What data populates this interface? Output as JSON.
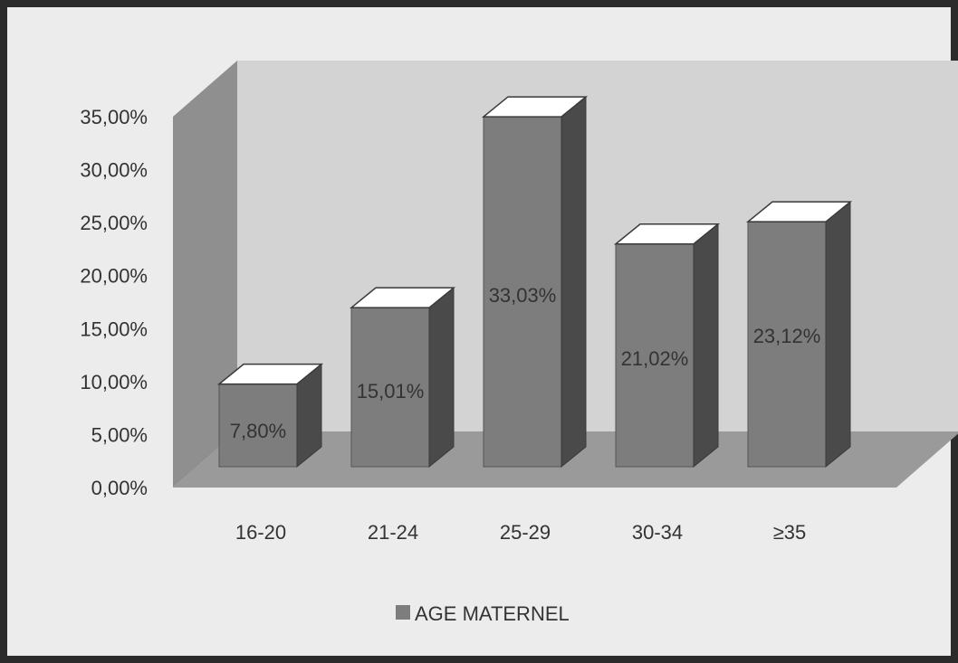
{
  "chart_data": {
    "type": "bar",
    "three_d": true,
    "categories": [
      "16-20",
      "21-24",
      "25-29",
      "30-34",
      "≥35"
    ],
    "series": [
      {
        "name": "AGE MATERNEL",
        "values": [
          7.8,
          15.01,
          33.03,
          21.02,
          23.12
        ],
        "labels": [
          "7,80%",
          "15,01%",
          "33,03%",
          "21,02%",
          "23,12%"
        ]
      }
    ],
    "yticks": [
      "0,00%",
      "5,00%",
      "10,00%",
      "15,00%",
      "20,00%",
      "25,00%",
      "30,00%",
      "35,00%"
    ],
    "ylim": [
      0,
      35
    ],
    "grid": false,
    "legend": "bottom",
    "colors": {
      "bar_front": "#7d7d7d",
      "bar_side": "#4a4a4a",
      "bar_top": "#ffffff",
      "wall_back": "#d3d3d3",
      "wall_side": "#8f8f8f",
      "floor": "#9a9a9a",
      "background": "#ececec",
      "text": "#333333"
    }
  }
}
